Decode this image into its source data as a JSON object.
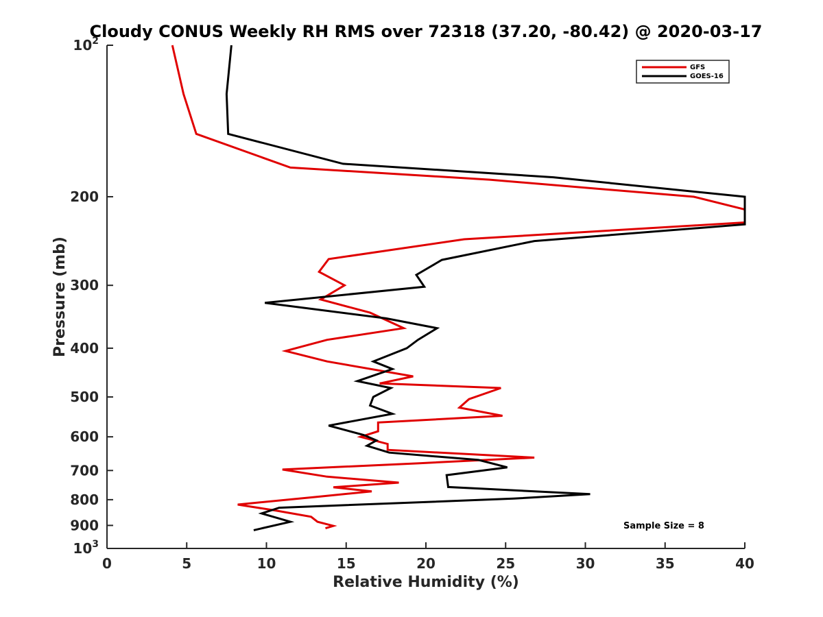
{
  "chart_data": {
    "type": "line",
    "title": "Cloudy CONUS Weekly RH RMS over 72318 (37.20, -80.42) @ 2020-03-17",
    "xlabel": "Relative Humidity (%)",
    "ylabel": "Pressure (mb)",
    "xlim": [
      0,
      40
    ],
    "ylim": [
      100,
      1000
    ],
    "yscale": "log",
    "y_reversed": true,
    "grid": false,
    "legend_position": "top-right",
    "x_ticks": [
      {
        "value": 0,
        "label": "0"
      },
      {
        "value": 5,
        "label": "5"
      },
      {
        "value": 10,
        "label": "10"
      },
      {
        "value": 15,
        "label": "15"
      },
      {
        "value": 20,
        "label": "20"
      },
      {
        "value": 25,
        "label": "25"
      },
      {
        "value": 30,
        "label": "30"
      },
      {
        "value": 35,
        "label": "35"
      },
      {
        "value": 40,
        "label": "40"
      }
    ],
    "y_ticks": [
      {
        "value": 100,
        "label": "10",
        "sup": "2"
      },
      {
        "value": 200,
        "label": "200",
        "sup": ""
      },
      {
        "value": 300,
        "label": "300",
        "sup": ""
      },
      {
        "value": 400,
        "label": "400",
        "sup": ""
      },
      {
        "value": 500,
        "label": "500",
        "sup": ""
      },
      {
        "value": 600,
        "label": "600",
        "sup": ""
      },
      {
        "value": 700,
        "label": "700",
        "sup": ""
      },
      {
        "value": 800,
        "label": "800",
        "sup": ""
      },
      {
        "value": 900,
        "label": "900",
        "sup": ""
      },
      {
        "value": 1000,
        "label": "10",
        "sup": "3"
      }
    ],
    "series": [
      {
        "name": "GFS",
        "color": "#e00000",
        "points": [
          [
            4.1,
            100
          ],
          [
            4.8,
            125
          ],
          [
            5.6,
            150
          ],
          [
            11.5,
            175
          ],
          [
            24.0,
            185
          ],
          [
            36.8,
            200
          ],
          [
            40.0,
            212
          ],
          [
            40.0,
            225
          ],
          [
            22.4,
            243
          ],
          [
            13.9,
            266
          ],
          [
            13.3,
            282
          ],
          [
            14.9,
            300
          ],
          [
            13.4,
            320
          ],
          [
            16.5,
            340
          ],
          [
            18.6,
            365
          ],
          [
            13.8,
            385
          ],
          [
            11.2,
            405
          ],
          [
            13.8,
            425
          ],
          [
            19.2,
            455
          ],
          [
            17.1,
            470
          ],
          [
            24.7,
            480
          ],
          [
            22.7,
            505
          ],
          [
            22.1,
            525
          ],
          [
            24.8,
            545
          ],
          [
            17.0,
            562
          ],
          [
            17.0,
            585
          ],
          [
            15.9,
            600
          ],
          [
            17.6,
            620
          ],
          [
            17.6,
            637
          ],
          [
            26.8,
            660
          ],
          [
            19.6,
            677
          ],
          [
            11.0,
            697
          ],
          [
            13.8,
            720
          ],
          [
            18.3,
            740
          ],
          [
            14.2,
            756
          ],
          [
            16.6,
            770
          ],
          [
            13.1,
            790
          ],
          [
            8.2,
            818
          ],
          [
            10.5,
            840
          ],
          [
            12.8,
            865
          ],
          [
            13.2,
            885
          ],
          [
            14.2,
            902
          ],
          [
            13.7,
            912
          ]
        ]
      },
      {
        "name": "GOES-16",
        "color": "#000000",
        "points": [
          [
            7.8,
            100
          ],
          [
            7.5,
            125
          ],
          [
            7.6,
            150
          ],
          [
            14.8,
            172
          ],
          [
            28.0,
            183
          ],
          [
            40.0,
            200
          ],
          [
            40.0,
            227
          ],
          [
            26.8,
            245
          ],
          [
            21.0,
            267
          ],
          [
            19.4,
            286
          ],
          [
            19.9,
            302
          ],
          [
            9.9,
            325
          ],
          [
            17.5,
            349
          ],
          [
            20.7,
            365
          ],
          [
            19.5,
            385
          ],
          [
            18.8,
            400
          ],
          [
            16.7,
            425
          ],
          [
            17.9,
            440
          ],
          [
            15.7,
            465
          ],
          [
            17.8,
            480
          ],
          [
            16.7,
            500
          ],
          [
            16.5,
            520
          ],
          [
            17.9,
            540
          ],
          [
            13.9,
            570
          ],
          [
            16.1,
            595
          ],
          [
            16.9,
            610
          ],
          [
            16.3,
            625
          ],
          [
            17.7,
            645
          ],
          [
            23.3,
            667
          ],
          [
            25.1,
            690
          ],
          [
            21.3,
            715
          ],
          [
            21.4,
            755
          ],
          [
            30.3,
            780
          ],
          [
            25.5,
            796
          ],
          [
            10.8,
            830
          ],
          [
            9.7,
            852
          ],
          [
            11.5,
            885
          ],
          [
            9.2,
            920
          ]
        ]
      }
    ],
    "annotations": [
      "Sample Size = 8"
    ]
  }
}
